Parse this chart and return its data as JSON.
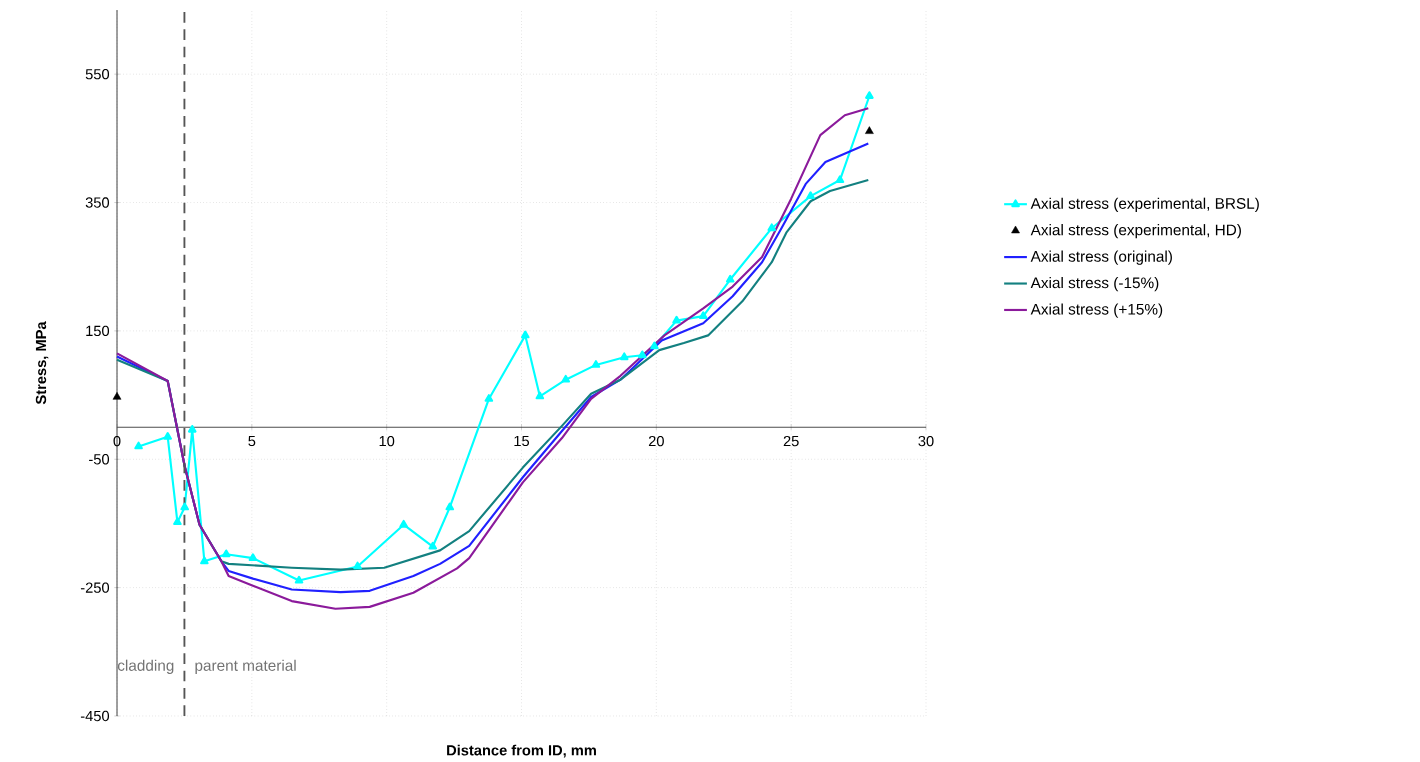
{
  "chart_data": {
    "type": "line",
    "xlabel": "Distance from ID, mm",
    "ylabel": "Stress, MPa",
    "xlim": [
      0,
      30
    ],
    "xticks": [
      0,
      5,
      10,
      15,
      20,
      25,
      30
    ],
    "ylim": [
      -450,
      650
    ],
    "yticks": [
      -450,
      -250,
      -50,
      150,
      350,
      550
    ],
    "grid": true,
    "legend": "right",
    "ref_lines": [
      {
        "axis": "x",
        "value": 2.5,
        "color": "#555555",
        "line_style": "dashed"
      }
    ],
    "annotations": [
      "cladding",
      "parent material"
    ],
    "series": [
      {
        "name": "Axial stress (experimental, BRSL)",
        "marker": "triangle",
        "color": "#00ffff",
        "x": [
          0.8,
          1.88,
          2.24,
          2.51,
          2.79,
          3.24,
          4.05,
          5.04,
          6.75,
          8.92,
          10.63,
          11.71,
          12.34,
          13.79,
          15.14,
          15.68,
          16.64,
          17.76,
          18.81,
          19.48,
          19.93,
          20.75,
          21.74,
          22.74,
          24.28,
          25.72,
          26.81,
          27.9
        ],
        "values": [
          -30,
          -15,
          -148,
          -125,
          -4,
          -209,
          -198,
          -204,
          -239,
          -217,
          -152,
          -186,
          -125,
          44,
          143,
          48,
          74,
          97,
          109,
          112,
          126,
          166,
          173,
          230,
          310,
          360,
          385,
          516
        ]
      },
      {
        "name": "Axial stress (experimental, HD)",
        "type": "scatter",
        "marker": "triangle",
        "color": "#000000",
        "x": [
          0,
          27.9
        ],
        "values": [
          47,
          461
        ]
      },
      {
        "name": "Axial stress (original)",
        "marker": "none",
        "color": "#2020ff",
        "x": [
          0,
          1.88,
          2.51,
          3.06,
          3.87,
          4.14,
          5.04,
          6.48,
          8.29,
          9.37,
          10.99,
          11.98,
          13.06,
          15.05,
          16.5,
          17.58,
          18.67,
          20.2,
          21.74,
          22.83,
          23.92,
          24.64,
          25.54,
          26.27,
          27.86
        ],
        "values": [
          110,
          72,
          -61,
          -152,
          -209,
          -224,
          -236,
          -253,
          -257,
          -255,
          -232,
          -213,
          -185,
          -78,
          -6,
          47,
          74,
          135,
          162,
          204,
          257,
          310,
          379,
          413,
          442
        ]
      },
      {
        "name": "Axial stress (-15%)",
        "marker": "none",
        "color": "#138080",
        "x": [
          0,
          1.88,
          2.51,
          3.06,
          3.87,
          4.14,
          6.48,
          8.29,
          9.91,
          11.98,
          13.06,
          15.05,
          16.5,
          17.58,
          18.67,
          20.11,
          21.02,
          21.92,
          23.19,
          24.28,
          24.82,
          25.72,
          26.44,
          27.86
        ],
        "values": [
          105,
          72,
          -61,
          -152,
          -209,
          -213,
          -219,
          -222,
          -219,
          -192,
          -162,
          -63,
          2,
          52,
          74,
          120,
          131,
          143,
          196,
          257,
          303,
          352,
          368,
          385
        ]
      },
      {
        "name": "Axial stress (+15%)",
        "marker": "none",
        "color": "#8b1a9b",
        "x": [
          0,
          1.88,
          2.51,
          3.06,
          3.87,
          4.14,
          5.04,
          6.48,
          8.1,
          9.37,
          10.99,
          12.61,
          13.06,
          15.05,
          16.5,
          17.58,
          18.67,
          20.3,
          21.74,
          22.83,
          23.92,
          25,
          26.08,
          26.99,
          27.86
        ],
        "values": [
          115,
          72,
          -61,
          -152,
          -209,
          -232,
          -247,
          -271,
          -283,
          -280,
          -258,
          -220,
          -204,
          -86,
          -17,
          44,
          80,
          143,
          185,
          219,
          265,
          356,
          455,
          486,
          497
        ]
      }
    ]
  }
}
